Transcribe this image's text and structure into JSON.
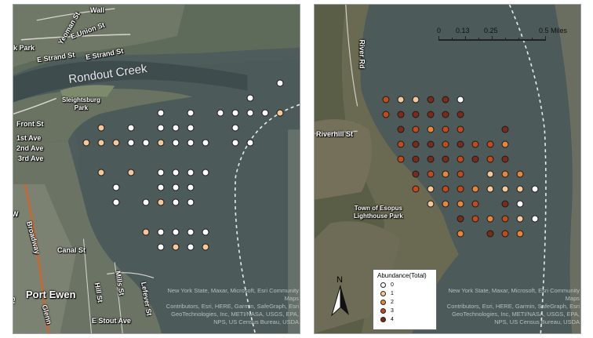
{
  "left_map": {
    "labels": {
      "rondout_creek": "Rondout Creek",
      "sleightsburg_park": "Sleightsburg\nPark",
      "e_strand_st": "E Strand St",
      "e_union_st": "E Union St",
      "yeoman_st": "Yeoman St",
      "park": "k Park",
      "wall": "Wall",
      "front_st": "Front St",
      "first_ave": "1st Ave",
      "second_ave": "2nd Ave",
      "third_ave": "3rd Ave",
      "broadway": "Broadway",
      "canal_st": "Canal St",
      "port_ewen": "Port Ewen",
      "ew": "W",
      "e_stout_ave": "E Stout Ave",
      "hill_st": "Hill St",
      "mills_st": "Mills St",
      "st_w": "St",
      "lefever": "Lefever St",
      "glenn": "Glenn",
      "st2": "St"
    },
    "attribution": "New York State, Maxar, Microsoft, Esri Community Maps\nContributors, Esri, HERE, Garmin, SafeGraph, Esri\nGeoTechnologies, Inc, METI/NASA, USGS, EPA,\nNPS, US Census Bureau, USDA"
  },
  "right_map": {
    "labels": {
      "river_rd": "River Rd",
      "riverhill_st": "Riverhill St",
      "lighthouse_park": "Town of Esopus\nLighthouse Park"
    },
    "attribution": "New York State, Maxar, Microsoft, Esri Community Maps\nContributors, Esri, HERE, Garmin, SafeGraph, Esri\nGeoTechnologies, Inc, METI/NASA, USGS, EPA,\nNPS, US Census Bureau, USDA",
    "scale": {
      "labels": [
        "0",
        "0.13",
        "0.25",
        "0.5 Miles"
      ]
    },
    "north": "N"
  },
  "legend": {
    "title": "Abundance(Total)",
    "items": [
      {
        "label": "0",
        "color": "#ffffff"
      },
      {
        "label": "1",
        "color": "#f5c89a"
      },
      {
        "label": "2",
        "color": "#e8853b"
      },
      {
        "label": "3",
        "color": "#c44a1c"
      },
      {
        "label": "4",
        "color": "#7a2b1b"
      }
    ]
  },
  "sites_left": [
    {
      "grid": [
        12,
        1
      ],
      "abundance": 0
    },
    {
      "grid": [
        10,
        2
      ],
      "abundance": 0
    },
    {
      "grid": [
        4,
        3
      ],
      "abundance": 0
    },
    {
      "grid": [
        6,
        3
      ],
      "abundance": 0
    },
    {
      "grid": [
        8,
        3
      ],
      "abundance": 0
    },
    {
      "grid": [
        9,
        3
      ],
      "abundance": 0
    },
    {
      "grid": [
        10,
        3
      ],
      "abundance": 0
    },
    {
      "grid": [
        11,
        3
      ],
      "abundance": 0
    },
    {
      "grid": [
        12,
        3
      ],
      "abundance": 1
    },
    {
      "grid": [
        0,
        4
      ],
      "abundance": 1
    },
    {
      "grid": [
        2,
        4
      ],
      "abundance": 0
    },
    {
      "grid": [
        4,
        4
      ],
      "abundance": 0
    },
    {
      "grid": [
        5,
        4
      ],
      "abundance": 0
    },
    {
      "grid": [
        6,
        4
      ],
      "abundance": 0
    },
    {
      "grid": [
        9,
        4
      ],
      "abundance": 0
    },
    {
      "grid": [
        -1,
        5
      ],
      "abundance": 1
    },
    {
      "grid": [
        0,
        5
      ],
      "abundance": 1
    },
    {
      "grid": [
        1,
        5
      ],
      "abundance": 1
    },
    {
      "grid": [
        2,
        5
      ],
      "abundance": 0
    },
    {
      "grid": [
        3,
        5
      ],
      "abundance": 0
    },
    {
      "grid": [
        4,
        5
      ],
      "abundance": 1
    },
    {
      "grid": [
        5,
        5
      ],
      "abundance": 0
    },
    {
      "grid": [
        6,
        5
      ],
      "abundance": 0
    },
    {
      "grid": [
        7,
        5
      ],
      "abundance": 0
    },
    {
      "grid": [
        9,
        5
      ],
      "abundance": 0
    },
    {
      "grid": [
        10,
        5
      ],
      "abundance": 0
    },
    {
      "grid": [
        0,
        7
      ],
      "abundance": 1
    },
    {
      "grid": [
        2,
        7
      ],
      "abundance": 1
    },
    {
      "grid": [
        4,
        7
      ],
      "abundance": 0
    },
    {
      "grid": [
        5,
        7
      ],
      "abundance": 0
    },
    {
      "grid": [
        6,
        7
      ],
      "abundance": 0
    },
    {
      "grid": [
        7,
        7
      ],
      "abundance": 0
    },
    {
      "grid": [
        1,
        8
      ],
      "abundance": 0
    },
    {
      "grid": [
        4,
        8
      ],
      "abundance": 0
    },
    {
      "grid": [
        5,
        8
      ],
      "abundance": 0
    },
    {
      "grid": [
        6,
        8
      ],
      "abundance": 0
    },
    {
      "grid": [
        1,
        9
      ],
      "abundance": 0
    },
    {
      "grid": [
        3,
        9
      ],
      "abundance": 0
    },
    {
      "grid": [
        4,
        9
      ],
      "abundance": 1
    },
    {
      "grid": [
        5,
        9
      ],
      "abundance": 0
    },
    {
      "grid": [
        6,
        9
      ],
      "abundance": 0
    },
    {
      "grid": [
        3,
        11
      ],
      "abundance": 1
    },
    {
      "grid": [
        4,
        11
      ],
      "abundance": 0
    },
    {
      "grid": [
        5,
        11
      ],
      "abundance": 0
    },
    {
      "grid": [
        6,
        11
      ],
      "abundance": 0
    },
    {
      "grid": [
        7,
        11
      ],
      "abundance": 0
    },
    {
      "grid": [
        4,
        12
      ],
      "abundance": 0
    },
    {
      "grid": [
        5,
        12
      ],
      "abundance": 1
    },
    {
      "grid": [
        6,
        12
      ],
      "abundance": 0
    },
    {
      "grid": [
        7,
        12
      ],
      "abundance": 1
    }
  ],
  "sites_right": [
    {
      "grid": [
        0,
        0
      ],
      "abundance": 3
    },
    {
      "grid": [
        1,
        0
      ],
      "abundance": 1
    },
    {
      "grid": [
        2,
        0
      ],
      "abundance": 1
    },
    {
      "grid": [
        3,
        0
      ],
      "abundance": 4
    },
    {
      "grid": [
        4,
        0
      ],
      "abundance": 4
    },
    {
      "grid": [
        5,
        0
      ],
      "abundance": 0
    },
    {
      "grid": [
        0,
        1
      ],
      "abundance": 3
    },
    {
      "grid": [
        1,
        1
      ],
      "abundance": 4
    },
    {
      "grid": [
        2,
        1
      ],
      "abundance": 4
    },
    {
      "grid": [
        3,
        1
      ],
      "abundance": 4
    },
    {
      "grid": [
        4,
        1
      ],
      "abundance": 4
    },
    {
      "grid": [
        5,
        1
      ],
      "abundance": 4
    },
    {
      "grid": [
        1,
        2
      ],
      "abundance": 4
    },
    {
      "grid": [
        2,
        2
      ],
      "abundance": 3
    },
    {
      "grid": [
        3,
        2
      ],
      "abundance": 2
    },
    {
      "grid": [
        4,
        2
      ],
      "abundance": 3
    },
    {
      "grid": [
        5,
        2
      ],
      "abundance": 3
    },
    {
      "grid": [
        8,
        2
      ],
      "abundance": 4
    },
    {
      "grid": [
        1,
        3
      ],
      "abundance": 3
    },
    {
      "grid": [
        2,
        3
      ],
      "abundance": 4
    },
    {
      "grid": [
        3,
        3
      ],
      "abundance": 4
    },
    {
      "grid": [
        4,
        3
      ],
      "abundance": 3
    },
    {
      "grid": [
        5,
        3
      ],
      "abundance": 4
    },
    {
      "grid": [
        6,
        3
      ],
      "abundance": 3
    },
    {
      "grid": [
        7,
        3
      ],
      "abundance": 3
    },
    {
      "grid": [
        8,
        3
      ],
      "abundance": 2
    },
    {
      "grid": [
        1,
        4
      ],
      "abundance": 3
    },
    {
      "grid": [
        2,
        4
      ],
      "abundance": 4
    },
    {
      "grid": [
        3,
        4
      ],
      "abundance": 4
    },
    {
      "grid": [
        4,
        4
      ],
      "abundance": 4
    },
    {
      "grid": [
        5,
        4
      ],
      "abundance": 3
    },
    {
      "grid": [
        6,
        4
      ],
      "abundance": 4
    },
    {
      "grid": [
        7,
        4
      ],
      "abundance": 3
    },
    {
      "grid": [
        8,
        4
      ],
      "abundance": 4
    },
    {
      "grid": [
        2,
        5
      ],
      "abundance": 4
    },
    {
      "grid": [
        3,
        5
      ],
      "abundance": 3
    },
    {
      "grid": [
        4,
        5
      ],
      "abundance": 2
    },
    {
      "grid": [
        5,
        5
      ],
      "abundance": 3
    },
    {
      "grid": [
        7,
        5
      ],
      "abundance": 1
    },
    {
      "grid": [
        8,
        5
      ],
      "abundance": 2
    },
    {
      "grid": [
        9,
        5
      ],
      "abundance": 2
    },
    {
      "grid": [
        2,
        6
      ],
      "abundance": 3
    },
    {
      "grid": [
        3,
        6
      ],
      "abundance": 1
    },
    {
      "grid": [
        4,
        6
      ],
      "abundance": 3
    },
    {
      "grid": [
        5,
        6
      ],
      "abundance": 3
    },
    {
      "grid": [
        6,
        6
      ],
      "abundance": 2
    },
    {
      "grid": [
        7,
        6
      ],
      "abundance": 1
    },
    {
      "grid": [
        8,
        6
      ],
      "abundance": 1
    },
    {
      "grid": [
        9,
        6
      ],
      "abundance": 1
    },
    {
      "grid": [
        10,
        6
      ],
      "abundance": 0
    },
    {
      "grid": [
        3,
        7
      ],
      "abundance": 1
    },
    {
      "grid": [
        4,
        7
      ],
      "abundance": 2
    },
    {
      "grid": [
        5,
        7
      ],
      "abundance": 2
    },
    {
      "grid": [
        6,
        7
      ],
      "abundance": 3
    },
    {
      "grid": [
        8,
        7
      ],
      "abundance": 4
    },
    {
      "grid": [
        9,
        7
      ],
      "abundance": 0
    },
    {
      "grid": [
        5,
        8
      ],
      "abundance": 4
    },
    {
      "grid": [
        6,
        8
      ],
      "abundance": 3
    },
    {
      "grid": [
        7,
        8
      ],
      "abundance": 2
    },
    {
      "grid": [
        8,
        8
      ],
      "abundance": 3
    },
    {
      "grid": [
        9,
        8
      ],
      "abundance": 1
    },
    {
      "grid": [
        10,
        8
      ],
      "abundance": 0
    },
    {
      "grid": [
        5,
        9
      ],
      "abundance": 2
    },
    {
      "grid": [
        7,
        9
      ],
      "abundance": 4
    },
    {
      "grid": [
        8,
        9
      ],
      "abundance": 3
    },
    {
      "grid": [
        9,
        9
      ],
      "abundance": 2
    }
  ]
}
